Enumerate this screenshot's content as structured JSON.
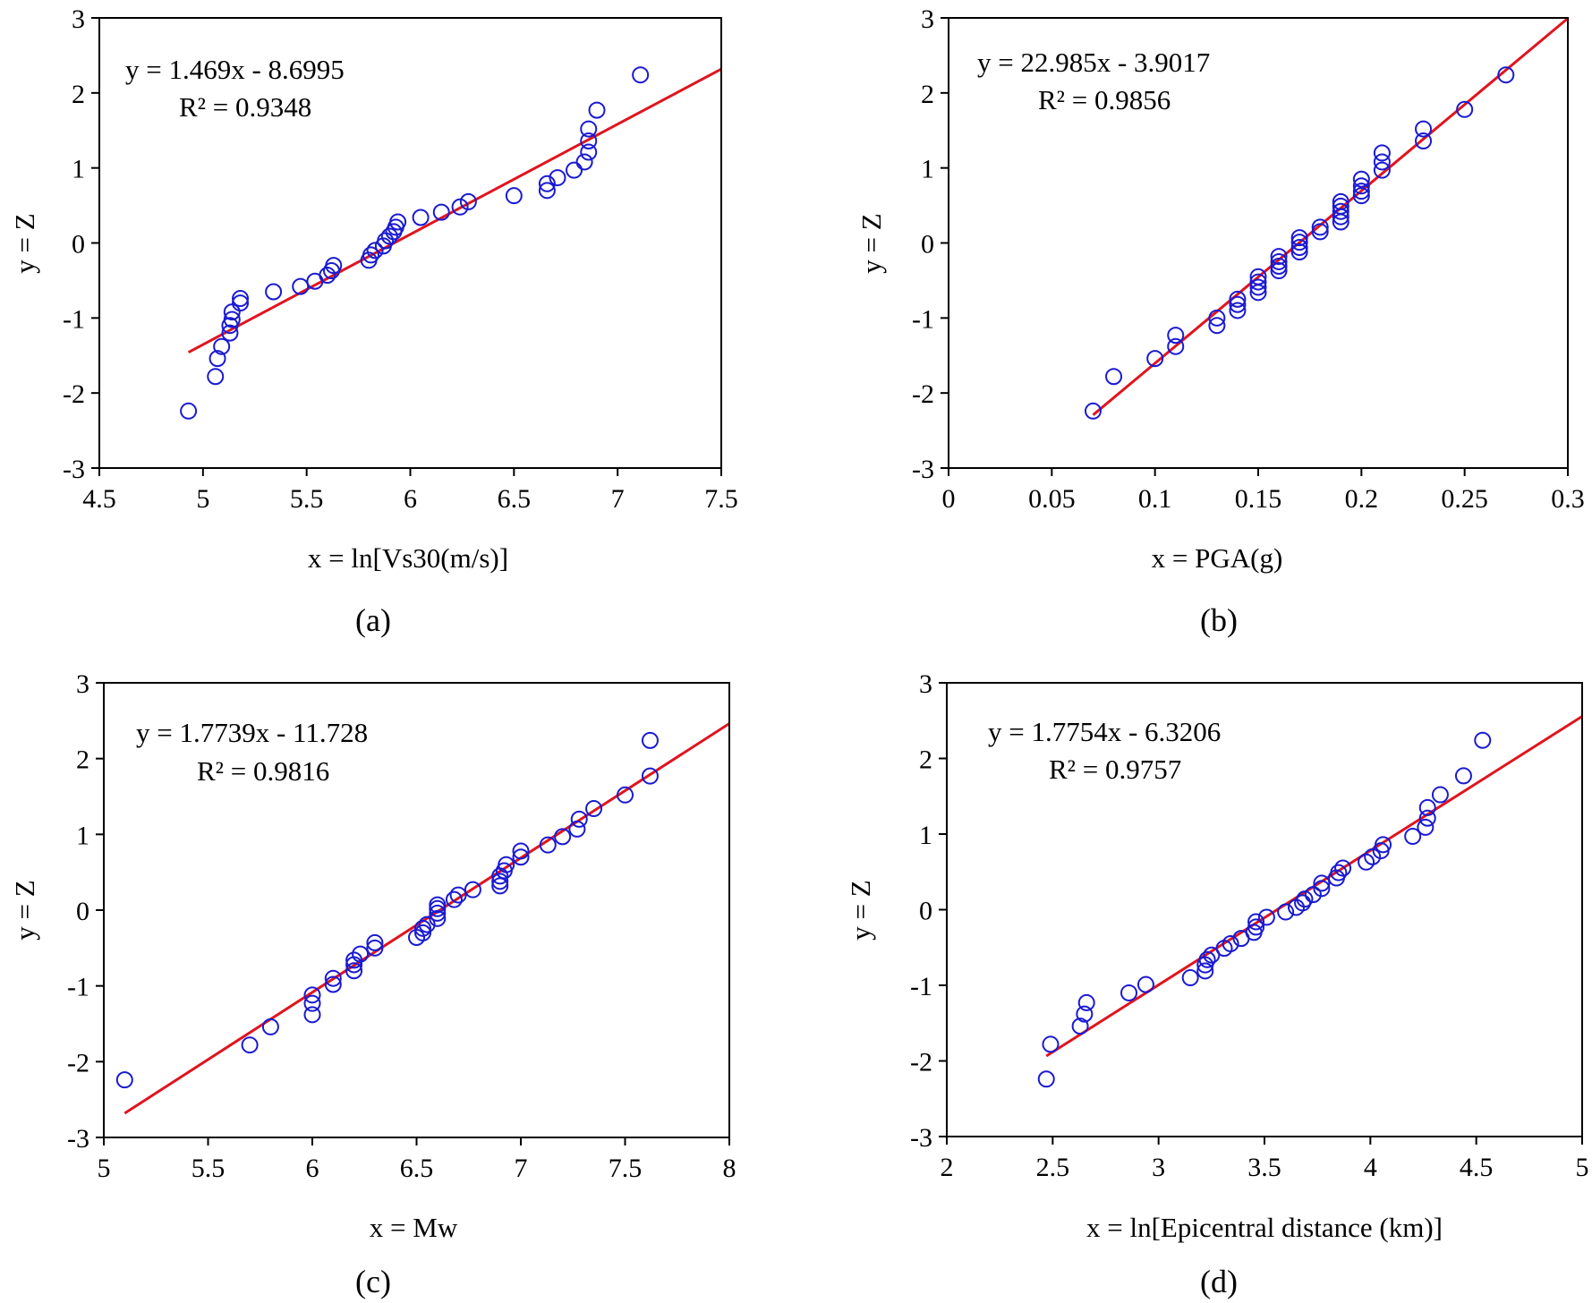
{
  "figure": {
    "line_color": "#e0141e",
    "marker_color": "#1a1ad2",
    "axes_color": "#000000"
  },
  "chart_data": [
    {
      "id": "a",
      "type": "scatter",
      "panel_label": "(a)",
      "xlabel": "x = ln[Vs30(m/s)]",
      "ylabel": "y = Z",
      "xlim": [
        4.5,
        7.5
      ],
      "ylim": [
        -3,
        3
      ],
      "xticks": [
        4.5,
        5,
        5.5,
        6,
        6.5,
        7,
        7.5
      ],
      "xtick_labels": [
        "4.5",
        "5",
        "5.5",
        "6",
        "6.5",
        "7",
        "7.5"
      ],
      "yticks": [
        -3,
        -2,
        -1,
        0,
        1,
        2,
        3
      ],
      "ytick_labels": [
        "-3",
        "-2",
        "-1",
        "0",
        "1",
        "2",
        "3"
      ],
      "equation": "y = 1.469x - 8.6995",
      "r2": "R² = 0.9348",
      "fit": {
        "slope": 1.469,
        "intercept": -8.6995,
        "x_range": [
          4.93,
          7.5
        ]
      },
      "points": [
        [
          4.93,
          -2.24
        ],
        [
          5.06,
          -1.78
        ],
        [
          5.07,
          -1.54
        ],
        [
          5.09,
          -1.38
        ],
        [
          5.13,
          -1.2
        ],
        [
          5.13,
          -1.1
        ],
        [
          5.14,
          -1.02
        ],
        [
          5.14,
          -0.92
        ],
        [
          5.18,
          -0.8
        ],
        [
          5.18,
          -0.74
        ],
        [
          5.34,
          -0.65
        ],
        [
          5.47,
          -0.58
        ],
        [
          5.54,
          -0.51
        ],
        [
          5.6,
          -0.43
        ],
        [
          5.62,
          -0.37
        ],
        [
          5.63,
          -0.3
        ],
        [
          5.8,
          -0.23
        ],
        [
          5.81,
          -0.16
        ],
        [
          5.83,
          -0.1
        ],
        [
          5.87,
          -0.04
        ],
        [
          5.88,
          0.03
        ],
        [
          5.9,
          0.09
        ],
        [
          5.92,
          0.15
        ],
        [
          5.93,
          0.21
        ],
        [
          5.94,
          0.28
        ],
        [
          6.05,
          0.34
        ],
        [
          6.15,
          0.41
        ],
        [
          6.24,
          0.48
        ],
        [
          6.28,
          0.55
        ],
        [
          6.5,
          0.63
        ],
        [
          6.66,
          0.7
        ],
        [
          6.66,
          0.79
        ],
        [
          6.71,
          0.87
        ],
        [
          6.79,
          0.97
        ],
        [
          6.84,
          1.08
        ],
        [
          6.86,
          1.21
        ],
        [
          6.86,
          1.36
        ],
        [
          6.86,
          1.52
        ],
        [
          6.9,
          1.77
        ],
        [
          7.11,
          2.24
        ]
      ]
    },
    {
      "id": "b",
      "type": "scatter",
      "panel_label": "(b)",
      "xlabel": "x = PGA(g)",
      "ylabel": "y = Z",
      "xlim": [
        0,
        0.3
      ],
      "ylim": [
        -3,
        3
      ],
      "xticks": [
        0,
        0.05,
        0.1,
        0.15,
        0.2,
        0.25,
        0.3
      ],
      "xtick_labels": [
        "0",
        "0.05",
        "0.1",
        "0.15",
        "0.2",
        "0.25",
        "0.3"
      ],
      "yticks": [
        -3,
        -2,
        -1,
        0,
        1,
        2,
        3
      ],
      "ytick_labels": [
        "-3",
        "-2",
        "-1",
        "0",
        "1",
        "2",
        "3"
      ],
      "equation": "y = 22.985x - 3.9017",
      "r2": "R² = 0.9856",
      "fit": {
        "slope": 22.985,
        "intercept": -3.9017,
        "x_range": [
          0.07,
          0.3
        ]
      },
      "points": [
        [
          0.07,
          -2.24
        ],
        [
          0.08,
          -1.78
        ],
        [
          0.1,
          -1.54
        ],
        [
          0.11,
          -1.38
        ],
        [
          0.11,
          -1.23
        ],
        [
          0.13,
          -1.1
        ],
        [
          0.13,
          -1.0
        ],
        [
          0.14,
          -0.9
        ],
        [
          0.14,
          -0.82
        ],
        [
          0.14,
          -0.75
        ],
        [
          0.15,
          -0.66
        ],
        [
          0.15,
          -0.59
        ],
        [
          0.15,
          -0.52
        ],
        [
          0.15,
          -0.45
        ],
        [
          0.16,
          -0.37
        ],
        [
          0.16,
          -0.31
        ],
        [
          0.16,
          -0.25
        ],
        [
          0.16,
          -0.18
        ],
        [
          0.17,
          -0.12
        ],
        [
          0.17,
          -0.06
        ],
        [
          0.17,
          0.01
        ],
        [
          0.17,
          0.07
        ],
        [
          0.18,
          0.15
        ],
        [
          0.18,
          0.21
        ],
        [
          0.19,
          0.28
        ],
        [
          0.19,
          0.35
        ],
        [
          0.19,
          0.42
        ],
        [
          0.19,
          0.49
        ],
        [
          0.19,
          0.55
        ],
        [
          0.2,
          0.63
        ],
        [
          0.2,
          0.69
        ],
        [
          0.2,
          0.76
        ],
        [
          0.2,
          0.85
        ],
        [
          0.21,
          0.97
        ],
        [
          0.21,
          1.08
        ],
        [
          0.21,
          1.2
        ],
        [
          0.23,
          1.36
        ],
        [
          0.23,
          1.52
        ],
        [
          0.25,
          1.78
        ],
        [
          0.27,
          2.24
        ]
      ]
    },
    {
      "id": "c",
      "type": "scatter",
      "panel_label": "(c)",
      "xlabel": "x = Mw",
      "ylabel": "y = Z",
      "xlim": [
        5,
        8
      ],
      "ylim": [
        -3,
        3
      ],
      "xticks": [
        5,
        5.5,
        6,
        6.5,
        7,
        7.5,
        8
      ],
      "xtick_labels": [
        "5",
        "5.5",
        "6",
        "6.5",
        "7",
        "7.5",
        "8"
      ],
      "yticks": [
        -3,
        -2,
        -1,
        0,
        1,
        2,
        3
      ],
      "ytick_labels": [
        "-3",
        "-2",
        "-1",
        "0",
        "1",
        "2",
        "3"
      ],
      "equation": "y = 1.7739x - 11.728",
      "r2": "R² = 0.9816",
      "fit": {
        "slope": 1.7739,
        "intercept": -11.728,
        "x_range": [
          5.1,
          8
        ]
      },
      "points": [
        [
          5.1,
          -2.24
        ],
        [
          5.7,
          -1.78
        ],
        [
          5.8,
          -1.54
        ],
        [
          6.0,
          -1.38
        ],
        [
          6.0,
          -1.23
        ],
        [
          6.0,
          -1.12
        ],
        [
          6.1,
          -0.98
        ],
        [
          6.1,
          -0.9
        ],
        [
          6.2,
          -0.8
        ],
        [
          6.2,
          -0.72
        ],
        [
          6.2,
          -0.66
        ],
        [
          6.23,
          -0.58
        ],
        [
          6.3,
          -0.5
        ],
        [
          6.3,
          -0.43
        ],
        [
          6.5,
          -0.36
        ],
        [
          6.53,
          -0.3
        ],
        [
          6.53,
          -0.24
        ],
        [
          6.55,
          -0.19
        ],
        [
          6.6,
          -0.11
        ],
        [
          6.6,
          -0.04
        ],
        [
          6.6,
          0.02
        ],
        [
          6.6,
          0.07
        ],
        [
          6.68,
          0.14
        ],
        [
          6.7,
          0.2
        ],
        [
          6.77,
          0.27
        ],
        [
          6.9,
          0.32
        ],
        [
          6.9,
          0.38
        ],
        [
          6.9,
          0.45
        ],
        [
          6.92,
          0.52
        ],
        [
          6.93,
          0.6
        ],
        [
          7.0,
          0.7
        ],
        [
          7.0,
          0.78
        ],
        [
          7.13,
          0.86
        ],
        [
          7.2,
          0.97
        ],
        [
          7.27,
          1.07
        ],
        [
          7.28,
          1.2
        ],
        [
          7.35,
          1.34
        ],
        [
          7.5,
          1.52
        ],
        [
          7.62,
          1.77
        ],
        [
          7.62,
          2.24
        ]
      ]
    },
    {
      "id": "d",
      "type": "scatter",
      "panel_label": "(d)",
      "xlabel": "x = ln[Epicentral distance (km)]",
      "ylabel": "y = Z",
      "xlim": [
        2,
        5
      ],
      "ylim": [
        -3,
        3
      ],
      "xticks": [
        2,
        2.5,
        3,
        3.5,
        4,
        4.5,
        5
      ],
      "xtick_labels": [
        "2",
        "2.5",
        "3",
        "3.5",
        "4",
        "4.5",
        "5"
      ],
      "yticks": [
        -3,
        -2,
        -1,
        0,
        1,
        2,
        3
      ],
      "ytick_labels": [
        "-3",
        "-2",
        "-1",
        "0",
        "1",
        "2",
        "3"
      ],
      "equation": "y = 1.7754x - 6.3206",
      "r2": "R² = 0.9757",
      "fit": {
        "slope": 1.7754,
        "intercept": -6.3206,
        "x_range": [
          2.47,
          5
        ]
      },
      "points": [
        [
          2.47,
          -2.24
        ],
        [
          2.49,
          -1.78
        ],
        [
          2.63,
          -1.54
        ],
        [
          2.65,
          -1.38
        ],
        [
          2.66,
          -1.23
        ],
        [
          2.86,
          -1.1
        ],
        [
          2.94,
          -0.99
        ],
        [
          3.15,
          -0.9
        ],
        [
          3.22,
          -0.81
        ],
        [
          3.22,
          -0.73
        ],
        [
          3.23,
          -0.66
        ],
        [
          3.25,
          -0.6
        ],
        [
          3.31,
          -0.51
        ],
        [
          3.34,
          -0.45
        ],
        [
          3.39,
          -0.38
        ],
        [
          3.45,
          -0.3
        ],
        [
          3.46,
          -0.23
        ],
        [
          3.46,
          -0.16
        ],
        [
          3.51,
          -0.1
        ],
        [
          3.6,
          -0.03
        ],
        [
          3.65,
          0.03
        ],
        [
          3.68,
          0.09
        ],
        [
          3.69,
          0.14
        ],
        [
          3.73,
          0.2
        ],
        [
          3.77,
          0.28
        ],
        [
          3.77,
          0.35
        ],
        [
          3.84,
          0.42
        ],
        [
          3.85,
          0.49
        ],
        [
          3.87,
          0.55
        ],
        [
          3.98,
          0.63
        ],
        [
          4.01,
          0.7
        ],
        [
          4.05,
          0.78
        ],
        [
          4.06,
          0.86
        ],
        [
          4.2,
          0.97
        ],
        [
          4.26,
          1.09
        ],
        [
          4.27,
          1.21
        ],
        [
          4.27,
          1.35
        ],
        [
          4.33,
          1.52
        ],
        [
          4.44,
          1.77
        ],
        [
          4.53,
          2.24
        ]
      ]
    }
  ]
}
